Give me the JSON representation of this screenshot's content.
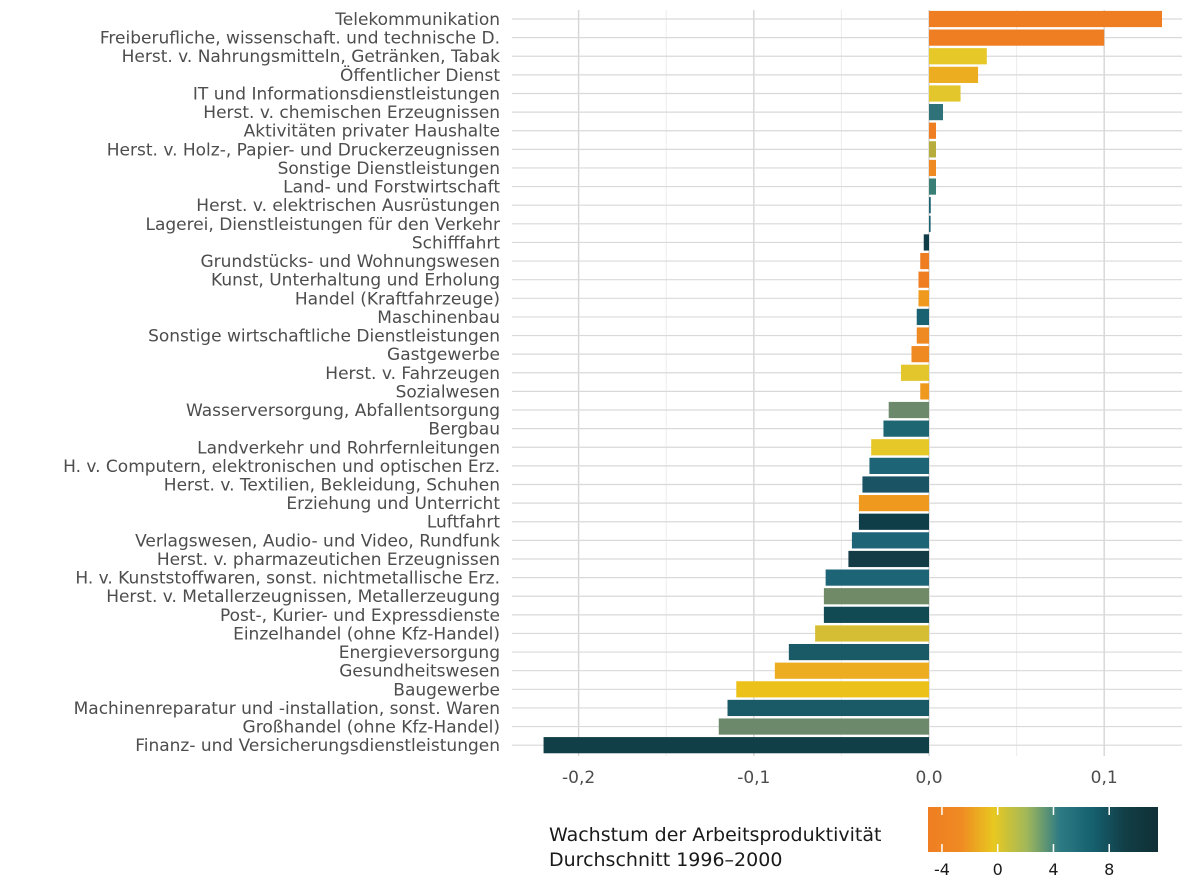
{
  "chart_data": {
    "type": "bar",
    "orientation": "horizontal",
    "categories": [
      "Telekommunikation",
      "Freiberufliche, wissenschaft. und technische D.",
      "Herst. v. Nahrungsmitteln, Getränken, Tabak",
      "Öffentlicher Dienst",
      "IT und Informationsdienstleistungen",
      "Herst. v. chemischen Erzeugnissen",
      "Aktivitäten privater Haushalte",
      "Herst. v. Holz-, Papier- und Druckerzeugnissen",
      "Sonstige Dienstleistungen",
      "Land- und Forstwirtschaft",
      "Herst. v. elektrischen Ausrüstungen",
      "Lagerei, Dienstleistungen für den Verkehr",
      "Schifffahrt",
      "Grundstücks- und Wohnungswesen",
      "Kunst, Unterhaltung und Erholung",
      "Handel (Kraftfahrzeuge)",
      "Maschinenbau",
      "Sonstige wirtschaftliche Dienstleistungen",
      "Gastgewerbe",
      "Herst. v. Fahrzeugen",
      "Sozialwesen",
      "Wasserversorgung, Abfallentsorgung",
      "Bergbau",
      "Landverkehr und Rohrfernleitungen",
      "H. v. Computern, elektronischen und optischen Erz.",
      "Herst. v. Textilien, Bekleidung, Schuhen",
      "Erziehung und Unterricht",
      "Luftfahrt",
      "Verlagswesen, Audio- und Video, Rundfunk",
      "Herst. v. pharmazeutichen Erzeugnissen",
      "H. v. Kunststoffwaren, sonst. nichtmetallische Erz.",
      "Herst. v. Metallerzeugnissen, Metallerzeugung",
      "Post-, Kurier- und Expressdienste",
      "Einzelhandel (ohne Kfz-Handel)",
      "Energieversorgung",
      "Gesundheitswesen",
      "Baugewerbe",
      "Machinenreparatur und -installation, sonst. Waren",
      "Großhandel (ohne Kfz-Handel)",
      "Finanz- und Versicherungsdienstleistungen"
    ],
    "values": [
      0.133,
      0.1,
      0.033,
      0.028,
      0.018,
      0.008,
      0.004,
      0.004,
      0.004,
      0.004,
      0.001,
      0.0,
      -0.003,
      -0.005,
      -0.006,
      -0.006,
      -0.007,
      -0.007,
      -0.01,
      -0.016,
      -0.005,
      -0.023,
      -0.026,
      -0.033,
      -0.034,
      -0.038,
      -0.04,
      -0.04,
      -0.044,
      -0.046,
      -0.059,
      -0.06,
      -0.06,
      -0.065,
      -0.08,
      -0.088,
      -0.11,
      -0.115,
      -0.12,
      -0.22
    ],
    "colors": [
      "#ef7e22",
      "#ef7e22",
      "#e6c828",
      "#ecad20",
      "#e2c62c",
      "#2f727a",
      "#ef7e22",
      "#b6ad3c",
      "#ef8a22",
      "#3a7f75",
      "#16606f",
      "#16606f",
      "#103e48",
      "#ef7e22",
      "#ef7e22",
      "#ef9a1e",
      "#1a6272",
      "#ef8a22",
      "#ef8a22",
      "#e2c62c",
      "#ef9a1e",
      "#6c8a6b",
      "#1e6672",
      "#e6c828",
      "#1c6476",
      "#1a5464",
      "#ef9a1e",
      "#103e48",
      "#1c6476",
      "#143c46",
      "#1c6476",
      "#708a67",
      "#114a52",
      "#d6be34",
      "#1a5a66",
      "#ecad20",
      "#ecc21a",
      "#1a5a66",
      "#6c8a6b",
      "#113f48"
    ],
    "xlim": [
      -0.225,
      0.15
    ],
    "x_ticks": [
      -0.2,
      -0.1,
      0.0,
      0.1
    ],
    "x_tick_labels": [
      "-0,2",
      "-0,1",
      "0,0",
      "0,1"
    ],
    "xlabel": "",
    "ylabel": "",
    "grid": true,
    "legend": {
      "title_line1": "Wachstum der Arbeitsproduktivität",
      "title_line2": "Durchschnitt 1996–2000",
      "placement": "bottom",
      "range": [
        -5,
        11.5
      ],
      "ticks": [
        -4,
        0,
        4,
        8
      ],
      "tick_labels": [
        "-4",
        "0",
        "4",
        "8"
      ],
      "gradient": [
        "#ef7e22",
        "#ef8a22",
        "#e8c820",
        "#a2b85a",
        "#2e7b84",
        "#16606f",
        "#123e46",
        "#0f3036"
      ]
    }
  }
}
